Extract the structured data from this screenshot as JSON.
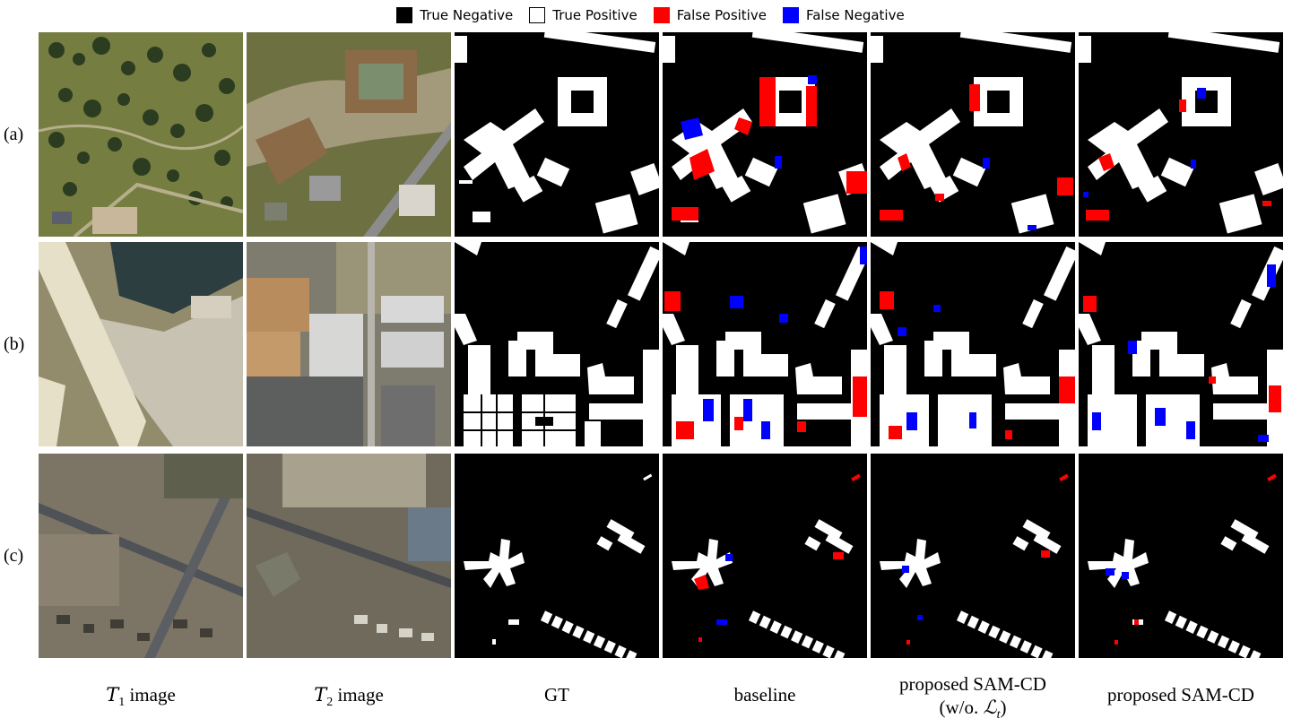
{
  "legend": {
    "items": [
      {
        "label": "True Negative",
        "color": "#000000"
      },
      {
        "label": "True Positive",
        "color": "#ffffff"
      },
      {
        "label": "False Positive",
        "color": "#ff0000"
      },
      {
        "label": "False Negative",
        "color": "#0000ff"
      }
    ]
  },
  "rows": [
    {
      "label": "(a)"
    },
    {
      "label": "(b)"
    },
    {
      "label": "(c)"
    }
  ],
  "columns": {
    "t1": {
      "var": "T",
      "sub": "1",
      "text": " image"
    },
    "t2": {
      "var": "T",
      "sub": "2",
      "text": " image"
    },
    "gt": "GT",
    "baseline": "baseline",
    "sam_wo_line1": "proposed SAM-CD",
    "sam_wo_line2_prefix": "(w/o. ",
    "sam_wo_line2_symbol": "ℒ",
    "sam_wo_line2_sub": "t",
    "sam_wo_line2_suffix": ")",
    "sam": "proposed SAM-CD"
  }
}
